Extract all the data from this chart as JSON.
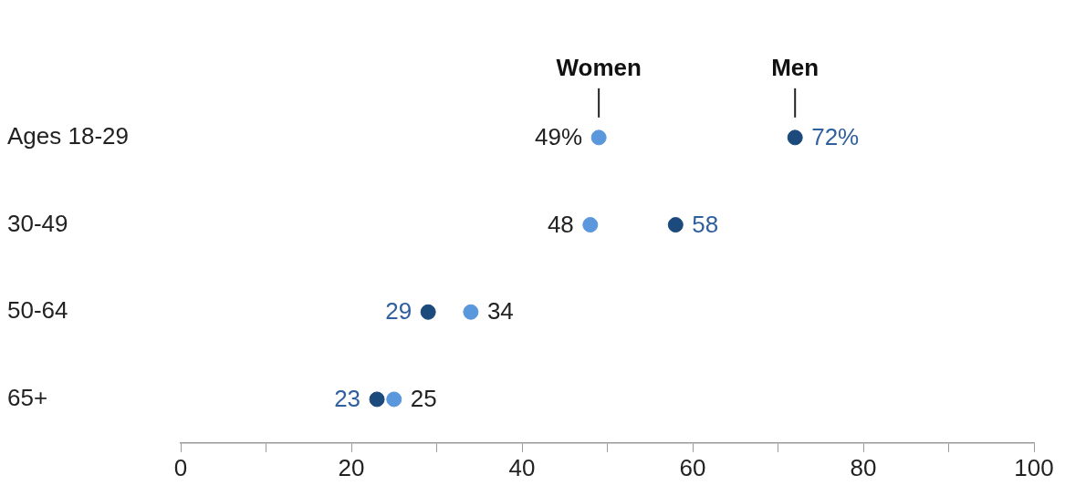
{
  "chart_data": {
    "type": "scatter",
    "orientation": "horizontal",
    "categories": [
      "Ages 18-29",
      "30-49",
      "50-64",
      "65+"
    ],
    "series": [
      {
        "name": "Women",
        "color": "#5b97dc",
        "values": [
          49,
          48,
          34,
          25
        ],
        "value_labels": [
          "49%",
          "48",
          "34",
          "25"
        ]
      },
      {
        "name": "Men",
        "color": "#1d4a7c",
        "values": [
          72,
          58,
          29,
          23
        ],
        "value_labels": [
          "72%",
          "58",
          "29",
          "23"
        ]
      }
    ],
    "xlim": [
      0,
      100
    ],
    "xticks": [
      0,
      {
        "value": 10,
        "label": null
      },
      20,
      {
        "value": 30,
        "label": null
      },
      40,
      {
        "value": 50,
        "label": null
      },
      60,
      {
        "value": 70,
        "label": null
      },
      80,
      {
        "value": 90,
        "label": null
      },
      100
    ],
    "marker": "circle",
    "grid": false,
    "legend": false
  }
}
